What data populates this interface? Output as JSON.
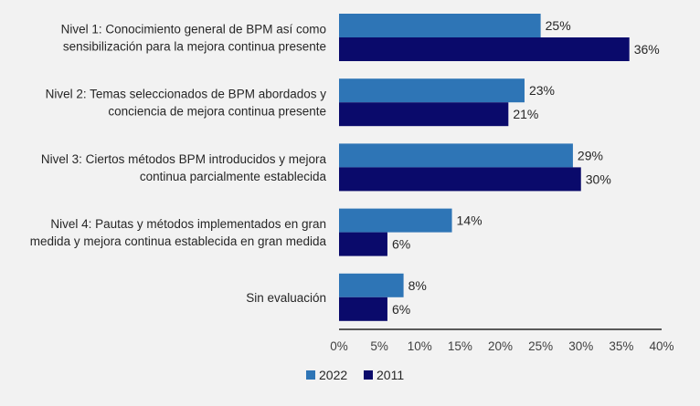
{
  "chart_data": {
    "type": "bar",
    "orientation": "horizontal",
    "categories": [
      [
        "Nivel 1: Conocimiento general de BPM así como",
        "sensibilización para la mejora continua presente"
      ],
      [
        "Nivel 2: Temas seleccionados de BPM abordados y",
        "conciencia de mejora continua presente"
      ],
      [
        "Nivel 3: Ciertos métodos BPM introducidos y mejora",
        "continua parcialmente establecida"
      ],
      [
        "Nivel 4: Pautas y métodos implementados en gran",
        "medida y mejora continua establecida en gran medida"
      ],
      [
        "Sin evaluación"
      ]
    ],
    "series": [
      {
        "name": "2022",
        "color": "#2e75b6",
        "values": [
          25,
          23,
          29,
          14,
          8
        ],
        "labels": [
          "25%",
          "23%",
          "29%",
          "14%",
          "8%"
        ]
      },
      {
        "name": "2011",
        "color": "#0a0a6b",
        "values": [
          36,
          21,
          30,
          6,
          6
        ],
        "labels": [
          "36%",
          "21%",
          "30%",
          "6%",
          "6%"
        ]
      }
    ],
    "xlim": [
      0,
      40
    ],
    "xticks": [
      0,
      5,
      10,
      15,
      20,
      25,
      30,
      35,
      40
    ],
    "xtick_labels": [
      "0%",
      "5%",
      "10%",
      "15%",
      "20%",
      "25%",
      "30%",
      "35%",
      "40%"
    ],
    "grid": false,
    "legend_position": "bottom-center"
  }
}
